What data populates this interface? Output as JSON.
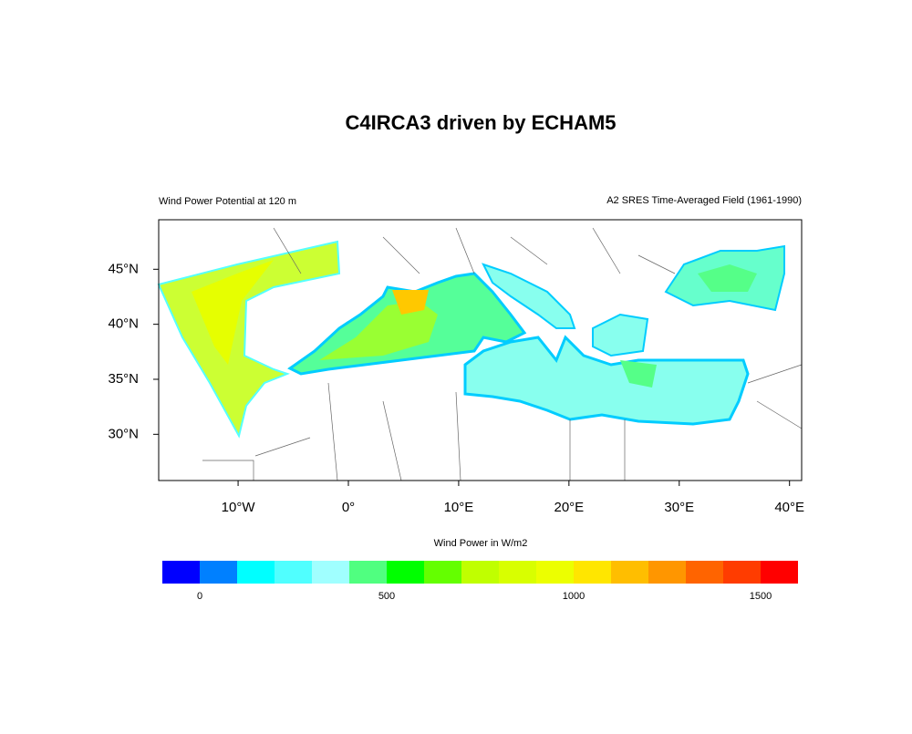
{
  "title": "C4IRCA3 driven by ECHAM5",
  "subtitle_left": "Wind Power Potential at 120 m",
  "subtitle_right": "A2 SRES Time-Averaged Field (1961-1990)",
  "map": {
    "xlim": [
      -17.2,
      41.1
    ],
    "ylim": [
      25.8,
      49.5
    ],
    "xticks": [
      {
        "value": -10,
        "label": "10°W"
      },
      {
        "value": 0,
        "label": "0°"
      },
      {
        "value": 10,
        "label": "10°E"
      },
      {
        "value": 20,
        "label": "20°E"
      },
      {
        "value": 30,
        "label": "30°E"
      },
      {
        "value": 40,
        "label": "40°E"
      }
    ],
    "yticks": [
      {
        "value": 30,
        "label": "30°N"
      },
      {
        "value": 35,
        "label": "35°N"
      },
      {
        "value": 40,
        "label": "40°N"
      },
      {
        "value": 45,
        "label": "45°N"
      }
    ]
  },
  "colorbar": {
    "title": "Wind Power in W/m2",
    "levels": [
      0,
      100,
      200,
      300,
      400,
      500,
      600,
      700,
      800,
      900,
      1000,
      1100,
      1200,
      1300,
      1400,
      1500
    ],
    "colors": [
      "#0000ff",
      "#0080ff",
      "#00ffff",
      "#50ffff",
      "#a0ffff",
      "#50ff80",
      "#00ff00",
      "#64ff00",
      "#c0ff00",
      "#d8ff00",
      "#ecff00",
      "#ffe600",
      "#ffbe00",
      "#ff9600",
      "#ff6400",
      "#ff3c00",
      "#ff0000"
    ],
    "ticks": [
      0,
      500,
      1000,
      1500
    ]
  }
}
